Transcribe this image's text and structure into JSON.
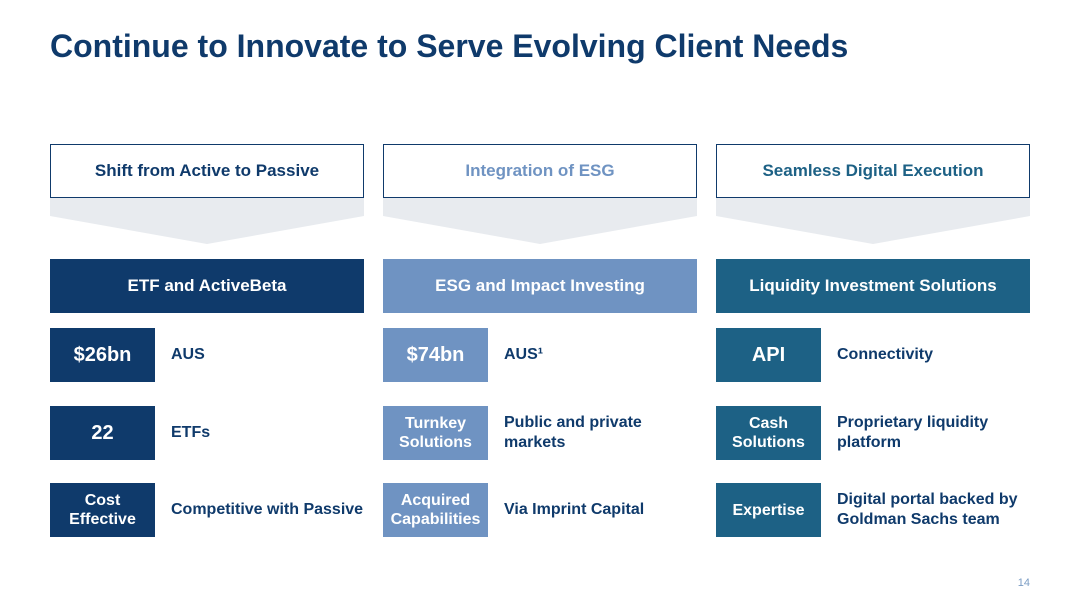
{
  "title": "Continue to Innovate to Serve Evolving Client Needs",
  "page_number": "14",
  "colors": {
    "navy": "#0f3a6b",
    "esg_blue": "#6f93c2",
    "teal": "#1d6185",
    "chevron_grey": "#e8ebef"
  },
  "columns": [
    {
      "header": "Shift from Active to Passive",
      "header_color": "#0f3a6b",
      "banner": "ETF and ActiveBeta",
      "banner_color": "#0f3a6b",
      "tile_color": "#0f3a6b",
      "rows": [
        {
          "tile": "$26bn",
          "tile_size": "big",
          "desc": "AUS"
        },
        {
          "tile": "22",
          "tile_size": "big",
          "desc": "ETFs"
        },
        {
          "tile": "Cost Effective",
          "tile_size": "small",
          "desc": "Competitive with Passive"
        }
      ]
    },
    {
      "header": "Integration of ESG",
      "header_color": "#6f93c2",
      "banner": "ESG and Impact Investing",
      "banner_color": "#6f93c2",
      "tile_color": "#6f93c2",
      "rows": [
        {
          "tile": "$74bn",
          "tile_size": "big",
          "desc": "AUS¹"
        },
        {
          "tile": "Turnkey Solutions",
          "tile_size": "small",
          "desc": "Public and private markets"
        },
        {
          "tile": "Acquired Capabilities",
          "tile_size": "small",
          "desc": "Via Imprint Capital"
        }
      ]
    },
    {
      "header": "Seamless Digital Execution",
      "header_color": "#1d6185",
      "banner": "Liquidity Investment Solutions",
      "banner_color": "#1d6185",
      "tile_color": "#1d6185",
      "rows": [
        {
          "tile": "API",
          "tile_size": "big",
          "desc": "Connectivity"
        },
        {
          "tile": "Cash Solutions",
          "tile_size": "small",
          "desc": "Proprietary liquidity platform"
        },
        {
          "tile": "Expertise",
          "tile_size": "small",
          "desc": "Digital portal backed by Goldman Sachs team"
        }
      ]
    }
  ]
}
